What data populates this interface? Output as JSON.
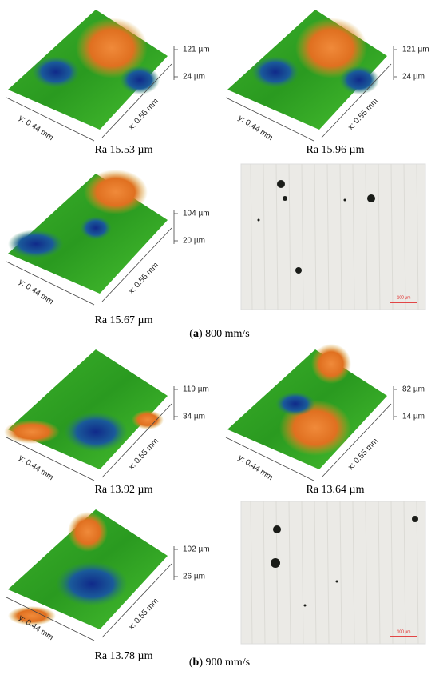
{
  "groups": [
    {
      "label": [
        "(",
        "a",
        ") 800 mm/s"
      ],
      "panels": [
        {
          "z_max": "121 µm",
          "z_min": "24 µm",
          "y_axis": "y: 0.44 mm",
          "x_axis": "x: 0.55 mm",
          "caption": "Ra 15.53 µm"
        },
        {
          "z_max": "121 µm",
          "z_min": "24 µm",
          "y_axis": "y: 0.44 mm",
          "x_axis": "x: 0.55 mm",
          "caption": "Ra 15.96 µm"
        },
        {
          "z_max": "104 µm",
          "z_min": "20 µm",
          "y_axis": "y: 0.44 mm",
          "x_axis": "x: 0.55 mm",
          "caption": "Ra 15.67 µm"
        }
      ],
      "micrograph": {
        "scale_bar": "100 µm"
      }
    },
    {
      "label": [
        "(",
        "b",
        ") 900 mm/s"
      ],
      "panels": [
        {
          "z_max": "119 µm",
          "z_min": "34 µm",
          "y_axis": "y: 0.44 mm",
          "x_axis": "x: 0.55 mm",
          "caption": "Ra 13.92 µm"
        },
        {
          "z_max": "82 µm",
          "z_min": "14 µm",
          "y_axis": "y: 0.44 mm",
          "x_axis": "x: 0.55 mm",
          "caption": "Ra 13.64 µm"
        },
        {
          "z_max": "102 µm",
          "z_min": "26 µm",
          "y_axis": "y: 0.44 mm",
          "x_axis": "x: 0.55 mm",
          "caption": "Ra 13.78 µm"
        }
      ],
      "micrograph": {
        "scale_bar": "100 µm"
      }
    }
  ]
}
